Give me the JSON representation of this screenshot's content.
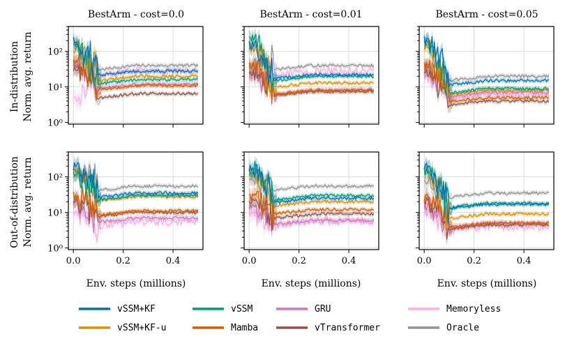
{
  "chart_data": {
    "type": "line",
    "x_scale": "linear",
    "y_scale": "log",
    "xlim": [
      -0.02,
      0.52
    ],
    "ylim": [
      0.9,
      500
    ],
    "xticks": [
      0.0,
      0.2,
      0.4
    ],
    "xtick_labels": [
      "0.0",
      "0.2",
      "0.4"
    ],
    "yticks": [
      1,
      10,
      100
    ],
    "ytick_labels": [
      "10⁰",
      "10¹",
      "10²"
    ],
    "xlabel": "Env. steps (millions)",
    "row_labels": [
      [
        "In-distribution",
        "Norm. avg. return"
      ],
      [
        "Out-of-distribution",
        "Norm. avg. return"
      ]
    ],
    "column_titles": [
      "BestArm - cost=0.0",
      "BestArm - cost=0.01",
      "BestArm - cost=0.05"
    ],
    "legend": [
      {
        "name": "vSSM+KF",
        "color": "#0173b2"
      },
      {
        "name": "vSSM",
        "color": "#029e73"
      },
      {
        "name": "GRU",
        "color": "#cc78bc"
      },
      {
        "name": "Memoryless",
        "color": "#fbafe4"
      },
      {
        "name": "vSSM+KF-u",
        "color": "#de8f05"
      },
      {
        "name": "Mamba",
        "color": "#d55e00"
      },
      {
        "name": "vTransformer",
        "color": "#8c564b"
      },
      {
        "name": "Oracle",
        "color": "#949494"
      }
    ],
    "panels": [
      {
        "row": 0,
        "col": 0,
        "series": {
          "vSSM+KF": {
            "start": 200,
            "final": 28
          },
          "vSSM": {
            "start": 150,
            "final": 16
          },
          "GRU": {
            "start": 40,
            "final": 12
          },
          "Memoryless": {
            "start": 5,
            "final": 28
          },
          "vSSM+KF-u": {
            "start": 120,
            "final": 20
          },
          "Mamba": {
            "start": 50,
            "final": 11
          },
          "vTransformer": {
            "start": 30,
            "final": 6.5
          },
          "Oracle": {
            "start": 45,
            "final": 40
          }
        }
      },
      {
        "row": 0,
        "col": 1,
        "series": {
          "vSSM+KF": {
            "start": 150,
            "final": 22
          },
          "vSSM": {
            "start": 250,
            "final": 20
          },
          "GRU": {
            "start": 30,
            "final": 8
          },
          "Memoryless": {
            "start": 20,
            "final": 28
          },
          "vSSM+KF-u": {
            "start": 130,
            "final": 13
          },
          "Mamba": {
            "start": 40,
            "final": 8
          },
          "vTransformer": {
            "start": 25,
            "final": 7.5
          },
          "Oracle": {
            "start": 40,
            "final": 40
          }
        }
      },
      {
        "row": 0,
        "col": 2,
        "series": {
          "vSSM+KF": {
            "start": 200,
            "final": 15
          },
          "vSSM": {
            "start": 180,
            "final": 9
          },
          "GRU": {
            "start": 30,
            "final": 7
          },
          "Memoryless": {
            "start": 20,
            "final": 6
          },
          "vSSM+KF-u": {
            "start": 130,
            "final": 8
          },
          "Mamba": {
            "start": 40,
            "final": 5
          },
          "vTransformer": {
            "start": 25,
            "final": 4
          },
          "Oracle": {
            "start": 40,
            "final": 20
          }
        }
      },
      {
        "row": 1,
        "col": 0,
        "series": {
          "vSSM+KF": {
            "start": 200,
            "final": 35
          },
          "vSSM": {
            "start": 120,
            "final": 30
          },
          "GRU": {
            "start": 20,
            "final": 7
          },
          "Memoryless": {
            "start": 10,
            "final": 5.5
          },
          "vSSM+KF-u": {
            "start": 150,
            "final": 28
          },
          "Mamba": {
            "start": 30,
            "final": 11
          },
          "vTransformer": {
            "start": 20,
            "final": 10
          },
          "Oracle": {
            "start": 100,
            "final": 55
          }
        }
      },
      {
        "row": 1,
        "col": 1,
        "series": {
          "vSSM+KF": {
            "start": 180,
            "final": 25
          },
          "vSSM": {
            "start": 150,
            "final": 30
          },
          "GRU": {
            "start": 15,
            "final": 6
          },
          "Memoryless": {
            "start": 10,
            "final": 5.5
          },
          "vSSM+KF-u": {
            "start": 120,
            "final": 20
          },
          "Mamba": {
            "start": 25,
            "final": 12
          },
          "vTransformer": {
            "start": 20,
            "final": 9
          },
          "Oracle": {
            "start": 90,
            "final": 55
          }
        }
      },
      {
        "row": 1,
        "col": 2,
        "series": {
          "vSSM+KF": {
            "start": 200,
            "final": 17
          },
          "vSSM": {
            "start": 150,
            "final": 18
          },
          "GRU": {
            "start": 15,
            "final": 5
          },
          "Memoryless": {
            "start": 10,
            "final": 4
          },
          "vSSM+KF-u": {
            "start": 130,
            "final": 9
          },
          "Mamba": {
            "start": 25,
            "final": 5
          },
          "vTransformer": {
            "start": 20,
            "final": 4.5
          },
          "Oracle": {
            "start": 80,
            "final": 35
          }
        }
      }
    ]
  }
}
